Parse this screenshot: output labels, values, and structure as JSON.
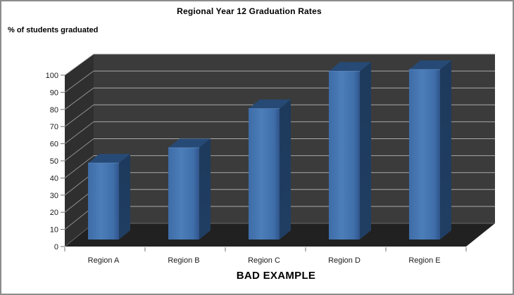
{
  "window": {
    "background": "#FFFFFF",
    "frame_border_color": "#8C8C8C"
  },
  "chart_data": {
    "type": "bar",
    "style": "3d-column-dark-walls",
    "title": "Regional Year 12 Graduation Rates",
    "ylabel": "% of students graduated",
    "caption": "BAD EXAMPLE",
    "categories": [
      "Region A",
      "Region B",
      "Region C",
      "Region D",
      "Region E"
    ],
    "values": [
      45,
      54,
      77,
      99,
      100
    ],
    "ylim": [
      0,
      100
    ],
    "ytick_step": 10,
    "yticks": [
      0,
      10,
      20,
      30,
      40,
      50,
      60,
      70,
      80,
      90,
      100
    ],
    "grid": true,
    "legend": "none",
    "colors": {
      "bar_front_gradient": [
        "#3E6CA7",
        "#4C7EB9",
        "#3F6EA9",
        "#30548A"
      ],
      "bar_side": "#203E63",
      "bar_top": "#264A75",
      "wall_back": "#3B3B3B",
      "wall_left": "#2F2F2F",
      "floor": "#212121",
      "gridline": "#B5B5B5",
      "tick": "#707070",
      "text": "#1A1A1A"
    }
  }
}
